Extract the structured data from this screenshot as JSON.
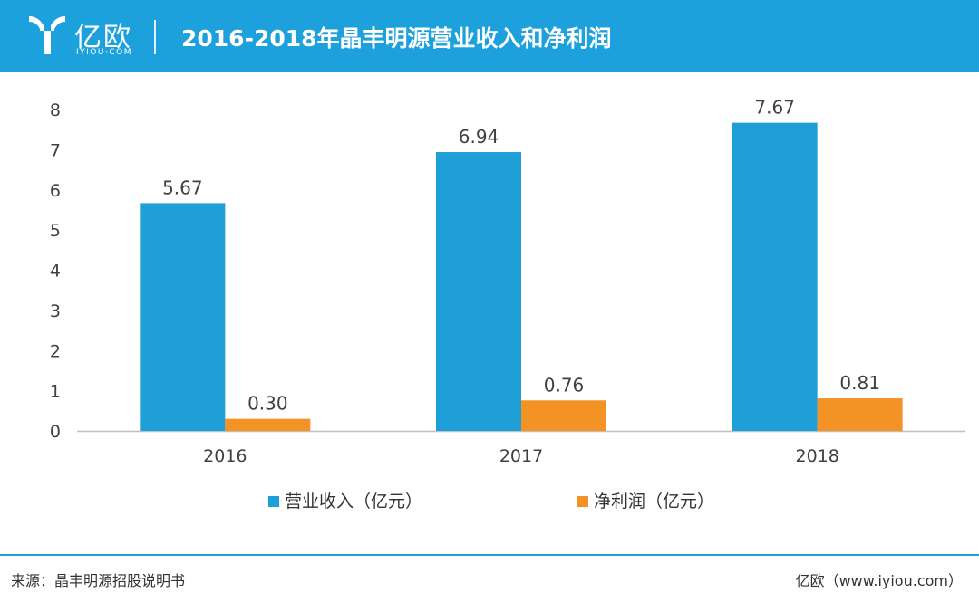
{
  "header": {
    "logo_text": "亿欧",
    "logo_sub": "IYIOU·COM",
    "title": "2016-2018年晶丰明源营业收入和净利润",
    "background_color": "#1da1dc"
  },
  "chart_data": {
    "type": "bar",
    "title": "2016-2018年晶丰明源营业收入和净利润",
    "categories": [
      "2016",
      "2017",
      "2018"
    ],
    "series": [
      {
        "name": "营业收入（亿元）",
        "values": [
          5.67,
          6.94,
          7.67
        ],
        "color": "#1f9fd8"
      },
      {
        "name": "净利润（亿元）",
        "values": [
          0.3,
          0.76,
          0.81
        ],
        "color": "#f39325"
      }
    ],
    "value_labels": [
      [
        "5.67",
        "6.94",
        "7.67"
      ],
      [
        "0.30",
        "0.76",
        "0.81"
      ]
    ],
    "y_ticks": [
      "0",
      "1",
      "2",
      "3",
      "4",
      "5",
      "6",
      "7",
      "8"
    ],
    "ylim": [
      0,
      8
    ],
    "grid": false,
    "legend_position": "bottom-center"
  },
  "footer": {
    "source": "来源：晶丰明源招股说明书",
    "credit": "亿欧（www.iyiou.com）",
    "line_color": "#1da1dc"
  }
}
